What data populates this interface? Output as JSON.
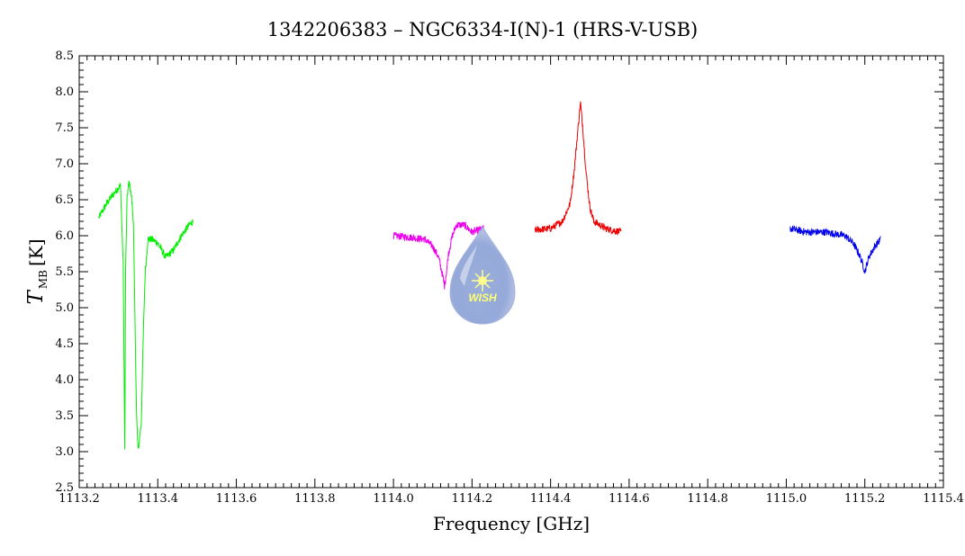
{
  "chart_data": {
    "type": "line",
    "title": "1342206383 – NGC6334-I(N)-1 (HRS-V-USB)",
    "xlabel": "Frequency [GHz]",
    "ylabel_main": "T",
    "ylabel_sub": "MB",
    "ylabel_unit": "[K]",
    "xlim": [
      1113.2,
      1115.4
    ],
    "ylim": [
      2.5,
      8.5
    ],
    "x_ticks": [
      "1113.2",
      "1113.4",
      "1113.6",
      "1113.8",
      "1114.0",
      "1114.2",
      "1114.4",
      "1114.6",
      "1114.8",
      "1115.0",
      "1115.2",
      "1115.4"
    ],
    "y_ticks": [
      "2.5",
      "3.0",
      "3.5",
      "4.0",
      "4.5",
      "5.0",
      "5.5",
      "6.0",
      "6.5",
      "7.0",
      "7.5",
      "8.0",
      "8.5"
    ],
    "grid": false,
    "legend": "none",
    "watermark_text": "WISH",
    "series": [
      {
        "color": "#00ee00",
        "noise": 0.05,
        "points": [
          [
            1113.25,
            6.25
          ],
          [
            1113.27,
            6.45
          ],
          [
            1113.29,
            6.6
          ],
          [
            1113.305,
            6.7
          ],
          [
            1113.312,
            5.6
          ],
          [
            1113.316,
            2.9
          ],
          [
            1113.318,
            5.5
          ],
          [
            1113.322,
            6.55
          ],
          [
            1113.327,
            6.75
          ],
          [
            1113.333,
            6.55
          ],
          [
            1113.338,
            6.2
          ],
          [
            1113.342,
            4.8
          ],
          [
            1113.346,
            3.5
          ],
          [
            1113.35,
            3.0
          ],
          [
            1113.354,
            3.2
          ],
          [
            1113.358,
            3.4
          ],
          [
            1113.363,
            4.6
          ],
          [
            1113.368,
            5.5
          ],
          [
            1113.375,
            5.95
          ],
          [
            1113.385,
            5.95
          ],
          [
            1113.4,
            5.9
          ],
          [
            1113.42,
            5.7
          ],
          [
            1113.44,
            5.8
          ],
          [
            1113.46,
            6.0
          ],
          [
            1113.48,
            6.15
          ],
          [
            1113.49,
            6.2
          ]
        ]
      },
      {
        "color": "#ee00ee",
        "noise": 0.05,
        "points": [
          [
            1114.0,
            6.0
          ],
          [
            1114.04,
            5.98
          ],
          [
            1114.08,
            5.95
          ],
          [
            1114.1,
            5.85
          ],
          [
            1114.115,
            5.7
          ],
          [
            1114.125,
            5.45
          ],
          [
            1114.13,
            5.3
          ],
          [
            1114.135,
            5.5
          ],
          [
            1114.14,
            5.75
          ],
          [
            1114.15,
            6.0
          ],
          [
            1114.16,
            6.15
          ],
          [
            1114.18,
            6.15
          ],
          [
            1114.2,
            6.05
          ],
          [
            1114.23,
            6.1
          ]
        ]
      },
      {
        "color": "#ee0000",
        "noise": 0.05,
        "points": [
          [
            1114.36,
            6.08
          ],
          [
            1114.4,
            6.1
          ],
          [
            1114.43,
            6.2
          ],
          [
            1114.45,
            6.45
          ],
          [
            1114.46,
            6.9
          ],
          [
            1114.47,
            7.5
          ],
          [
            1114.476,
            7.85
          ],
          [
            1114.482,
            7.5
          ],
          [
            1114.49,
            6.9
          ],
          [
            1114.5,
            6.4
          ],
          [
            1114.51,
            6.2
          ],
          [
            1114.54,
            6.1
          ],
          [
            1114.58,
            6.05
          ]
        ]
      },
      {
        "color": "#0000ee",
        "noise": 0.05,
        "points": [
          [
            1115.01,
            6.1
          ],
          [
            1115.05,
            6.05
          ],
          [
            1115.1,
            6.05
          ],
          [
            1115.15,
            6.0
          ],
          [
            1115.17,
            5.9
          ],
          [
            1115.185,
            5.75
          ],
          [
            1115.195,
            5.6
          ],
          [
            1115.2,
            5.5
          ],
          [
            1115.21,
            5.7
          ],
          [
            1115.225,
            5.85
          ],
          [
            1115.24,
            5.95
          ]
        ]
      }
    ]
  }
}
